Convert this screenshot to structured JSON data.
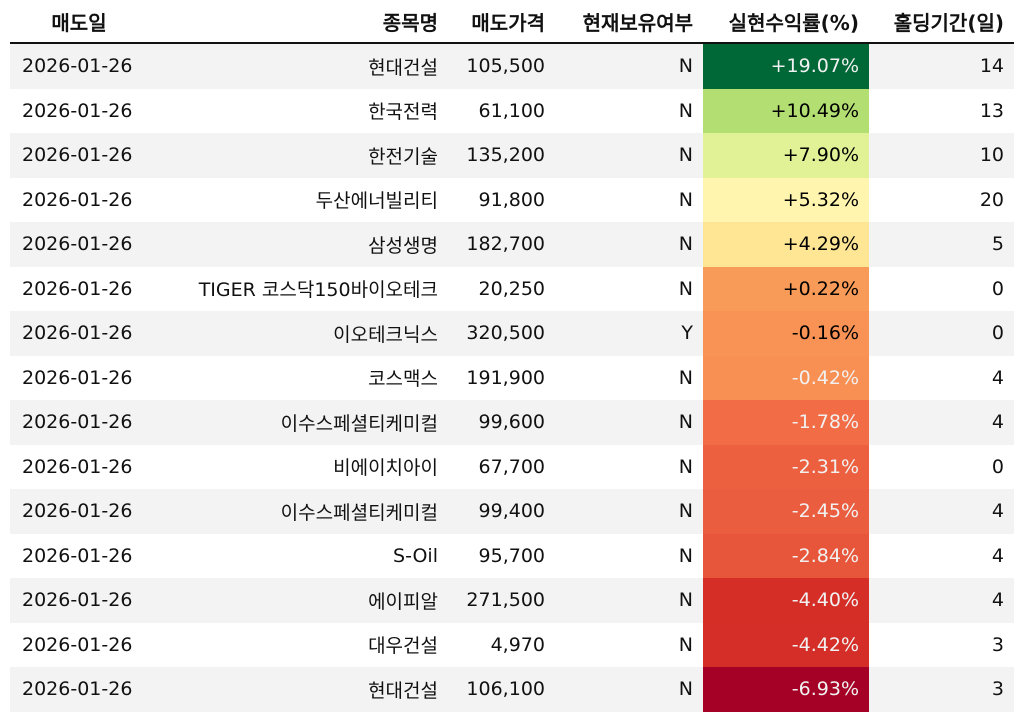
{
  "headers": [
    "매도일",
    "종목명",
    "매도가격",
    "현재보유여부",
    "실현수익률(%)",
    "홀딩기간(일)"
  ],
  "rows": [
    {
      "date": "2026-01-26",
      "name": "현대건설",
      "price": "105,500",
      "held": "N",
      "ret": "+19.07%",
      "days": "14",
      "bg": "#006837",
      "fg": "#f1f1f1"
    },
    {
      "date": "2026-01-26",
      "name": "한국전력",
      "price": "61,100",
      "held": "N",
      "ret": "+10.49%",
      "days": "13",
      "bg": "#b3df72",
      "fg": "#000000"
    },
    {
      "date": "2026-01-26",
      "name": "한전기술",
      "price": "135,200",
      "held": "N",
      "ret": "+7.90%",
      "days": "10",
      "bg": "#e0f295",
      "fg": "#000000"
    },
    {
      "date": "2026-01-26",
      "name": "두산에너빌리티",
      "price": "91,800",
      "held": "N",
      "ret": "+5.32%",
      "days": "20",
      "bg": "#fff5ae",
      "fg": "#000000"
    },
    {
      "date": "2026-01-26",
      "name": "삼성생명",
      "price": "182,700",
      "held": "N",
      "ret": "+4.29%",
      "days": "5",
      "bg": "#fee695",
      "fg": "#000000"
    },
    {
      "date": "2026-01-26",
      "name": "TIGER 코스닥150바이오테크",
      "price": "20,250",
      "held": "N",
      "ret": "+0.22%",
      "days": "0",
      "bg": "#f99b58",
      "fg": "#000000"
    },
    {
      "date": "2026-01-26",
      "name": "이오테크닉스",
      "price": "320,500",
      "held": "Y",
      "ret": "-0.16%",
      "days": "0",
      "bg": "#f99355",
      "fg": "#000000"
    },
    {
      "date": "2026-01-26",
      "name": "코스맥스",
      "price": "191,900",
      "held": "N",
      "ret": "-0.42%",
      "days": "4",
      "bg": "#f88f53",
      "fg": "#f1f1f1"
    },
    {
      "date": "2026-01-26",
      "name": "이수스페셜티케미컬",
      "price": "99,600",
      "held": "N",
      "ret": "-1.78%",
      "days": "4",
      "bg": "#f26c45",
      "fg": "#f1f1f1"
    },
    {
      "date": "2026-01-26",
      "name": "비에이치아이",
      "price": "67,700",
      "held": "N",
      "ret": "-2.31%",
      "days": "0",
      "bg": "#ec603f",
      "fg": "#f1f1f1"
    },
    {
      "date": "2026-01-26",
      "name": "이수스페셜티케미컬",
      "price": "99,400",
      "held": "N",
      "ret": "-2.45%",
      "days": "4",
      "bg": "#eb5d3f",
      "fg": "#f1f1f1"
    },
    {
      "date": "2026-01-26",
      "name": "S-Oil",
      "price": "95,700",
      "held": "N",
      "ret": "-2.84%",
      "days": "4",
      "bg": "#e7553a",
      "fg": "#f1f1f1"
    },
    {
      "date": "2026-01-26",
      "name": "에이피알",
      "price": "271,500",
      "held": "N",
      "ret": "-4.40%",
      "days": "4",
      "bg": "#d52e27",
      "fg": "#f1f1f1"
    },
    {
      "date": "2026-01-26",
      "name": "대우건설",
      "price": "4,970",
      "held": "N",
      "ret": "-4.42%",
      "days": "3",
      "bg": "#d52d27",
      "fg": "#f1f1f1"
    },
    {
      "date": "2026-01-26",
      "name": "현대건설",
      "price": "106,100",
      "held": "N",
      "ret": "-6.93%",
      "days": "3",
      "bg": "#a50026",
      "fg": "#f1f1f1"
    }
  ]
}
